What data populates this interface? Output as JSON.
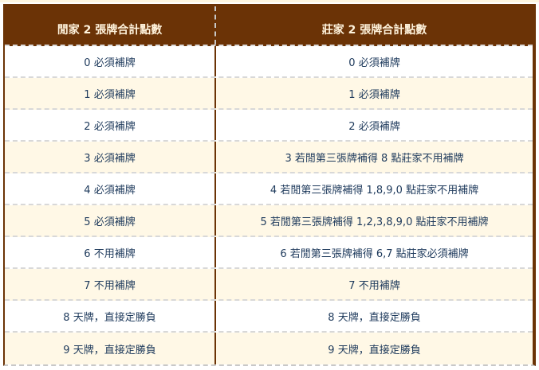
{
  "header": {
    "player": "閒家 2 張牌合計點數",
    "banker": "莊家 2 張牌合計點數"
  },
  "rows": [
    {
      "player": "0 必須補牌",
      "banker": "0 必須補牌"
    },
    {
      "player": "1 必須補牌",
      "banker": "1 必須補牌"
    },
    {
      "player": "2 必須補牌",
      "banker": "2 必須補牌"
    },
    {
      "player": "3 必須補牌",
      "banker": "3 若閒第三張牌補得 8 點莊家不用補牌"
    },
    {
      "player": "4 必須補牌",
      "banker": "4 若閒第三張牌補得 1,8,9,0 點莊家不用補牌"
    },
    {
      "player": "5 必須補牌",
      "banker": "5 若閒第三張牌補得 1,2,3,8,9,0 點莊家不用補牌"
    },
    {
      "player": "6 不用補牌",
      "banker": "6 若閒第三張牌補得 6,7 點莊家必須補牌"
    },
    {
      "player": "7 不用補牌",
      "banker": "7 不用補牌"
    },
    {
      "player": "8 天牌，直接定勝負",
      "banker": "8 天牌，直接定勝負"
    },
    {
      "player": "9 天牌，直接定勝負",
      "banker": "9 天牌，直接定勝負"
    }
  ],
  "colors": {
    "header_bg": "#6b3306",
    "alt_row": "#fff8e6",
    "text": "#1e3a5c"
  }
}
